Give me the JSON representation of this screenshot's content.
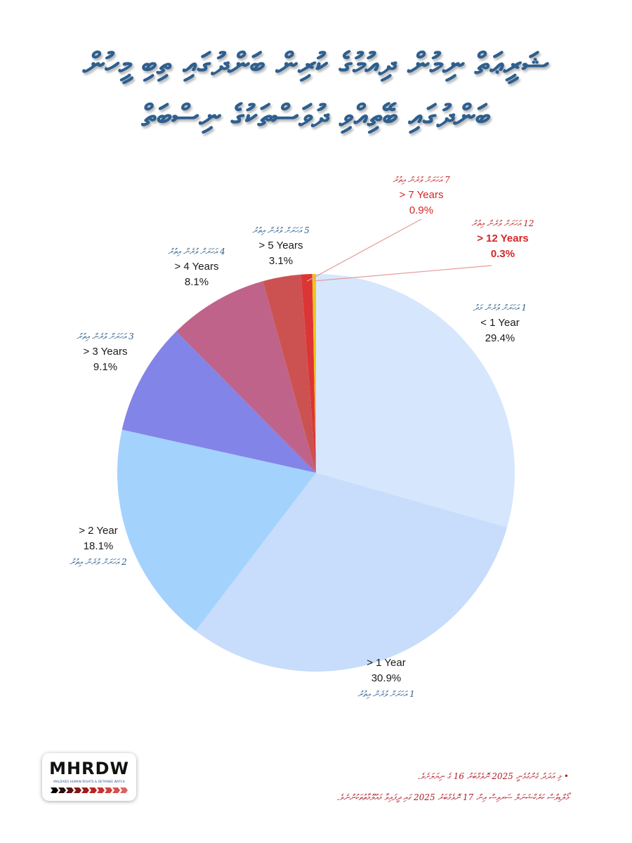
{
  "title_lines": [
    "ޝަރީޢަތް ނިމުން ދިއުމުގެ ކުރިން ބަންދުގައި ތިބި މީހުން",
    "ބަންދުގައި ބޭތިއްވި ދުވަސްތަކުގެ ނިސްބަތް"
  ],
  "logo": {
    "text": "MHRDW",
    "subtitle": "MALDIVES HUMAN RIGHTS & DETAINEE WATCH",
    "arrow_colors": [
      "#000000",
      "#2a1010",
      "#5a1414",
      "#801818",
      "#a01c1c",
      "#b82222",
      "#c83030",
      "#d04040",
      "#d85050",
      "#e06060"
    ]
  },
  "footnotes": [
    "• މި އަދަދު ގެންގުޅެނީ 2025 ނޮވެމްބަރު 16 ގެ ނިޔަލަށެވެ.",
    "މޯލްޑިވްސް ކަރެކްޝަނަލް ސަރވިސް އިން 17 ނޮވެމްބަރު 2025 ގައި ދީފައިވާ މައުލޫމާތުތަކުންނެވެ."
  ],
  "chart_data": {
    "type": "pie",
    "start": "12 o'clock, clockwise",
    "slices": [
      {
        "label": "< 1 Year",
        "value": 29.4,
        "value_text": "29.4%",
        "dv_label": "1 އަހަރަށް ވުރެން މަދު",
        "color": "#d6e6fd",
        "emphasis": false
      },
      {
        "label": "> 1 Year",
        "value": 30.9,
        "value_text": "30.9%",
        "dv_label": "1 އަހަރަށް ވުރެން އިތުރު",
        "color": "#c8dcfb",
        "emphasis": false
      },
      {
        "label": "> 2 Year",
        "value": 18.1,
        "value_text": "18.1%",
        "dv_label": "2 އަހަރަށް ވުރެން އިތުރު",
        "color": "#a3d2fd",
        "emphasis": false
      },
      {
        "label": "> 3 Years",
        "value": 9.1,
        "value_text": "9.1%",
        "dv_label": "3 އަހަރަށް ވުރެން އިތުރު",
        "color": "#8384e8",
        "emphasis": false
      },
      {
        "label": "> 4 Years",
        "value": 8.1,
        "value_text": "8.1%",
        "dv_label": "4 އަހަރަށް ވުރެން އިތުރު",
        "color": "#c0638a",
        "emphasis": false
      },
      {
        "label": "> 5 Years",
        "value": 3.1,
        "value_text": "3.1%",
        "dv_label": "5 އަހަރަށް ވުރެން އިތުރު",
        "color": "#cc5252",
        "emphasis": false
      },
      {
        "label": "> 7 Years",
        "value": 0.9,
        "value_text": "0.9%",
        "dv_label": "7 އަހަރަށް ވުރެން އިތުރު",
        "color": "#dc3535",
        "emphasis": false
      },
      {
        "label": "> 12 Years",
        "value": 0.3,
        "value_text": "0.3%",
        "dv_label": "12 އަހަރަށް ވުރެން އިތުރު",
        "color": "#f2c418",
        "emphasis": true
      }
    ],
    "legend": "none",
    "label_color_default": "#1a1a1a",
    "label_color_callout": "#d42626",
    "dv_label_color_default": "#2e5f8f",
    "dv_label_color_callout": "#c02828"
  }
}
